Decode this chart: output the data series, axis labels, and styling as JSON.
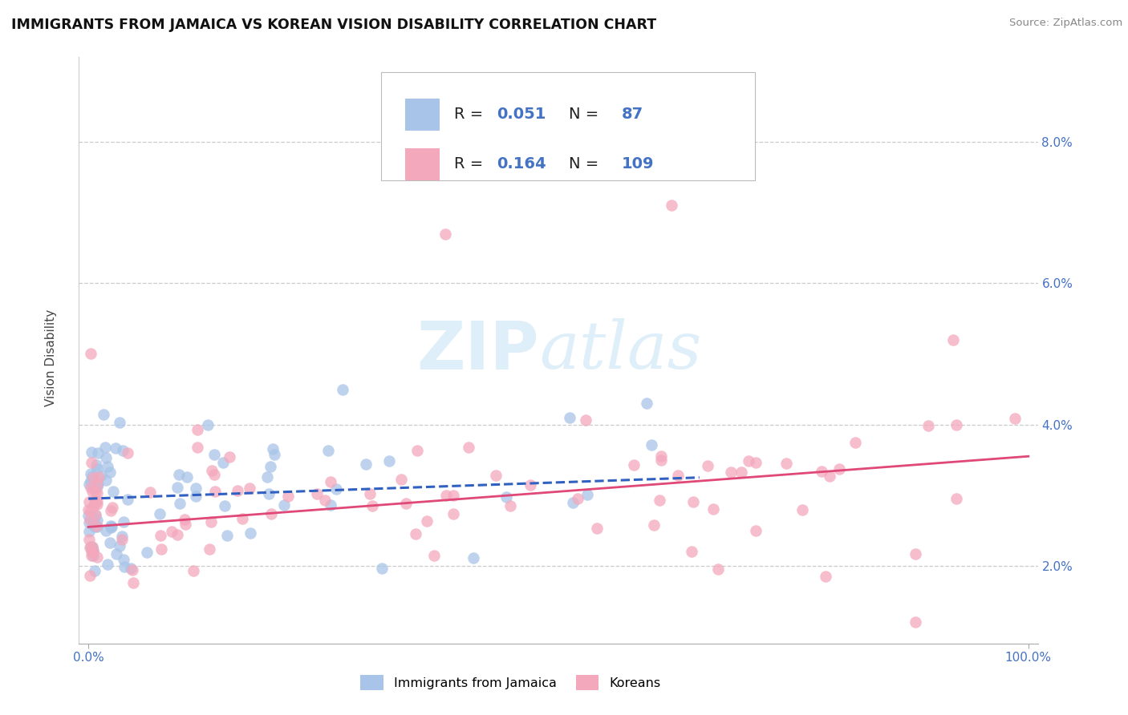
{
  "title": "IMMIGRANTS FROM JAMAICA VS KOREAN VISION DISABILITY CORRELATION CHART",
  "source": "Source: ZipAtlas.com",
  "ylabel": "Vision Disability",
  "watermark": "ZIPatlas",
  "xlim": [
    -1.0,
    101.0
  ],
  "ylim": [
    0.9,
    9.2
  ],
  "yticks": [
    2.0,
    4.0,
    6.0,
    8.0
  ],
  "xticks": [
    0.0,
    100.0
  ],
  "blue_color": "#a8c4e8",
  "pink_color": "#f4a8bc",
  "blue_line_color": "#3060c0",
  "pink_line_color": "#e04878",
  "legend_R_blue": "0.051",
  "legend_N_blue": "87",
  "legend_R_pink": "0.164",
  "legend_N_pink": "109",
  "legend_label_blue": "Immigrants from Jamaica",
  "legend_label_pink": "Koreans",
  "blue_line_x0": 0.0,
  "blue_line_y0": 2.95,
  "blue_line_x1": 65.0,
  "blue_line_y1": 3.25,
  "pink_line_x0": 0.0,
  "pink_line_y0": 2.55,
  "pink_line_x1": 100.0,
  "pink_line_y1": 3.55
}
